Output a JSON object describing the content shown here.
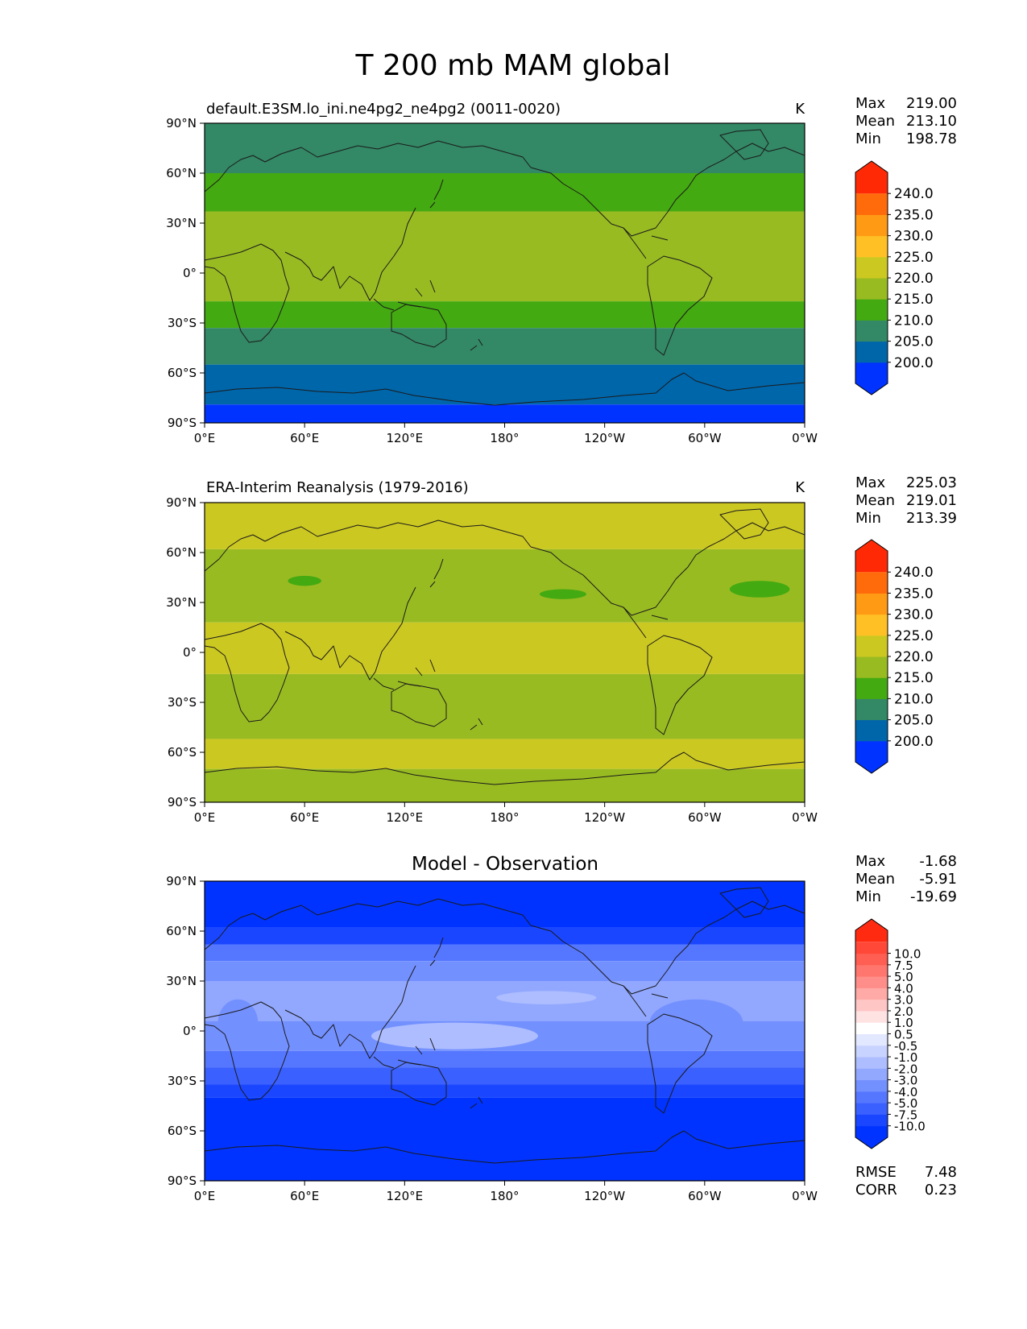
{
  "figure_title": "T 200 mb MAM global",
  "chart_data": [
    {
      "type": "heatmap",
      "panel": "model",
      "title_left": "default.E3SM.lo_ini.ne4pg2_ne4pg2 (0011-0020)",
      "units": "K",
      "x_ticks": [
        "0°E",
        "60°E",
        "120°E",
        "180°",
        "120°W",
        "60°W",
        "0°W"
      ],
      "y_ticks": [
        "90°N",
        "60°N",
        "30°N",
        "0°",
        "30°S",
        "60°S",
        "90°S"
      ],
      "xlim": [
        0,
        360
      ],
      "ylim": [
        -90,
        90
      ],
      "stats": [
        {
          "label": "Max",
          "value": "219.00"
        },
        {
          "label": "Mean",
          "value": "213.10"
        },
        {
          "label": "Min",
          "value": "198.78"
        }
      ],
      "colorbar": {
        "colors": [
          "#0033ff",
          "#0066aa",
          "#338866",
          "#44aa11",
          "#99bb22",
          "#ccc822",
          "#ffc025",
          "#ff9a15",
          "#ff6a0a",
          "#ff2a05"
        ],
        "labels": [
          "200.0",
          "205.0",
          "210.0",
          "215.0",
          "220.0",
          "225.0",
          "230.0",
          "235.0",
          "240.0"
        ]
      },
      "bands": [
        {
          "lat_from": 90,
          "lat_to": 60,
          "value": 208
        },
        {
          "lat_from": 60,
          "lat_to": 37,
          "value": 213
        },
        {
          "lat_from": 37,
          "lat_to": -17,
          "value": 217
        },
        {
          "lat_from": -17,
          "lat_to": -33,
          "value": 213
        },
        {
          "lat_from": -33,
          "lat_to": -55,
          "value": 208
        },
        {
          "lat_from": -55,
          "lat_to": -79,
          "value": 203
        },
        {
          "lat_from": -79,
          "lat_to": -90,
          "value": 199
        }
      ]
    },
    {
      "type": "heatmap",
      "panel": "observation",
      "title_left": "ERA-Interim Reanalysis (1979-2016)",
      "units": "K",
      "x_ticks": [
        "0°E",
        "60°E",
        "120°E",
        "180°",
        "120°W",
        "60°W",
        "0°W"
      ],
      "y_ticks": [
        "90°N",
        "60°N",
        "30°N",
        "0°",
        "30°S",
        "60°S",
        "90°S"
      ],
      "xlim": [
        0,
        360
      ],
      "ylim": [
        -90,
        90
      ],
      "stats": [
        {
          "label": "Max",
          "value": "225.03"
        },
        {
          "label": "Mean",
          "value": "219.01"
        },
        {
          "label": "Min",
          "value": "213.39"
        }
      ],
      "colorbar": {
        "colors": [
          "#0033ff",
          "#0066aa",
          "#338866",
          "#44aa11",
          "#99bb22",
          "#ccc822",
          "#ffc025",
          "#ff9a15",
          "#ff6a0a",
          "#ff2a05"
        ],
        "labels": [
          "200.0",
          "205.0",
          "210.0",
          "215.0",
          "220.0",
          "225.0",
          "230.0",
          "235.0",
          "240.0"
        ]
      },
      "bands": [
        {
          "lat_from": 90,
          "lat_to": 62,
          "value": 222
        },
        {
          "lat_from": 62,
          "lat_to": 18,
          "value": 218
        },
        {
          "lat_from": 18,
          "lat_to": -13,
          "value": 222
        },
        {
          "lat_from": -13,
          "lat_to": -52,
          "value": 218
        },
        {
          "lat_from": -52,
          "lat_to": -70,
          "value": 222
        },
        {
          "lat_from": -70,
          "lat_to": -90,
          "value": 218
        }
      ],
      "blobs": [
        {
          "lon": 60,
          "lat": 43,
          "rx": 10,
          "ry": 3,
          "value": 213
        },
        {
          "lon": 215,
          "lat": 35,
          "rx": 14,
          "ry": 3,
          "value": 213
        },
        {
          "lon": 333,
          "lat": 38,
          "rx": 18,
          "ry": 5,
          "value": 213
        }
      ]
    },
    {
      "type": "heatmap",
      "panel": "difference",
      "title_center": "Model - Observation",
      "x_ticks": [
        "0°E",
        "60°E",
        "120°E",
        "180°",
        "120°W",
        "60°W",
        "0°W"
      ],
      "y_ticks": [
        "90°N",
        "60°N",
        "30°N",
        "0°",
        "30°S",
        "60°S",
        "90°S"
      ],
      "xlim": [
        0,
        360
      ],
      "ylim": [
        -90,
        90
      ],
      "stats": [
        {
          "label": "Max",
          "value": "-1.68"
        },
        {
          "label": "Mean",
          "value": "-5.91"
        },
        {
          "label": "Min",
          "value": "-19.69"
        }
      ],
      "metrics": [
        {
          "label": "RMSE",
          "value": "7.48"
        },
        {
          "label": "CORR",
          "value": "0.23"
        }
      ],
      "colorbar": {
        "colors": [
          "#0033ff",
          "#1a46ff",
          "#3a60ff",
          "#5577ff",
          "#7390ff",
          "#92a8ff",
          "#adbdff",
          "#c8d3ff",
          "#e2e8ff",
          "#ffffff",
          "#ffe3e3",
          "#ffc6c6",
          "#ffaaa6",
          "#ff8e8a",
          "#ff766e",
          "#ff5e52",
          "#ff4838",
          "#ff2a10"
        ],
        "labels": [
          "-10.0",
          "-7.5",
          "-5.0",
          "-4.0",
          "-3.0",
          "-2.0",
          "-1.0",
          "-0.5",
          "0.5",
          "1.0",
          "2.0",
          "3.0",
          "4.0",
          "5.0",
          "7.5",
          "10.0"
        ]
      },
      "bands": [
        {
          "lat_from": 90,
          "lat_to": 62,
          "value": -11
        },
        {
          "lat_from": 62,
          "lat_to": 52,
          "value": -8.5
        },
        {
          "lat_from": 52,
          "lat_to": 42,
          "value": -4.5
        },
        {
          "lat_from": 42,
          "lat_to": 30,
          "value": -3.5
        },
        {
          "lat_from": 30,
          "lat_to": 6,
          "value": -2.5
        },
        {
          "lat_from": 6,
          "lat_to": -12,
          "value": -3.5
        },
        {
          "lat_from": -12,
          "lat_to": -22,
          "value": -4.5
        },
        {
          "lat_from": -22,
          "lat_to": -32,
          "value": -5.5
        },
        {
          "lat_from": -32,
          "lat_to": -40,
          "value": -8.5
        },
        {
          "lat_from": -40,
          "lat_to": -90,
          "value": -12
        }
      ],
      "blobs": [
        {
          "lon": 150,
          "lat": -3,
          "rx": 50,
          "ry": 8,
          "value": -1.5
        },
        {
          "lon": 205,
          "lat": 20,
          "rx": 30,
          "ry": 4,
          "value": -1.5
        },
        {
          "lon": 295,
          "lat": 5,
          "rx": 28,
          "ry": 14,
          "value": -3.5
        },
        {
          "lon": 20,
          "lat": 5,
          "rx": 12,
          "ry": 14,
          "value": -3.5
        }
      ]
    }
  ]
}
